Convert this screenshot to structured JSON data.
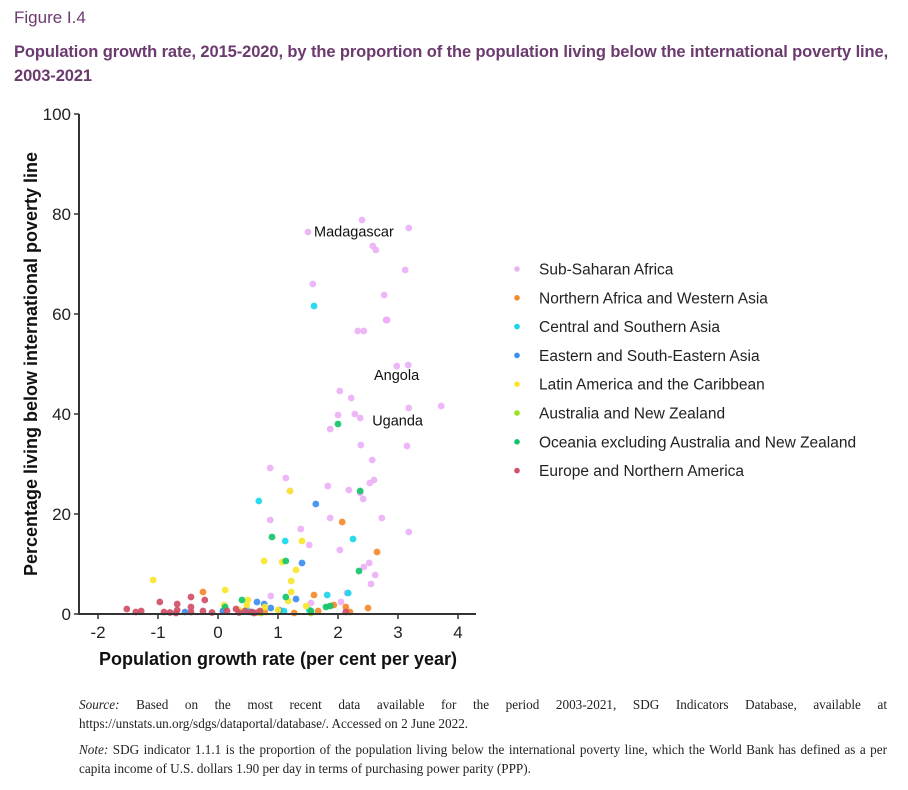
{
  "figure_label": "Figure I.4",
  "figure_title": "Population growth rate, 2015-2020, by the proportion of the population living below the international poverty line, 2003-2021",
  "notes": {
    "source_label": "Source:",
    "source_text": " Based on the most recent data available for the period 2003-2021, SDG Indicators Database, available at https://unstats.un.org/sdgs/dataportal/database/. Accessed on 2 June 2022.",
    "note_label": "Note:",
    "note_text": " SDG indicator 1.1.1 is the proportion of the population living below the international poverty line, which the World Bank has defined as a per capita income of U.S. dollars 1.90 per day in terms of purchasing power parity (PPP)."
  },
  "chart_data": {
    "type": "scatter",
    "title": "Population growth rate, 2015-2020, by the proportion of the population living below the international poverty line, 2003-2021",
    "xlabel": "Population growth rate (per cent per year)",
    "ylabel": "Percentage living below international poverty line",
    "xlim": [
      -2.35,
      4.3
    ],
    "ylim": [
      0,
      100
    ],
    "xticks": [
      -2,
      -1,
      0,
      1,
      2,
      3,
      4
    ],
    "yticks": [
      0,
      20,
      40,
      60,
      80,
      100
    ],
    "grid": false,
    "legend_position": "right",
    "annotations": [
      {
        "text": "Madagascar",
        "x": 1.6,
        "y": 75.5
      },
      {
        "text": "Angola",
        "x": 2.6,
        "y": 46.8
      },
      {
        "text": "Uganda",
        "x": 2.57,
        "y": 37.7
      }
    ],
    "series": [
      {
        "name": "Sub-Saharan Africa",
        "color": "#ebb0f5",
        "points": [
          [
            1.5,
            76.4
          ],
          [
            2.4,
            78.8
          ],
          [
            3.18,
            77.2
          ],
          [
            2.58,
            73.6
          ],
          [
            2.63,
            72.8
          ],
          [
            3.12,
            68.8
          ],
          [
            1.58,
            66.0
          ],
          [
            2.77,
            63.8
          ],
          [
            2.43,
            56.6
          ],
          [
            2.82,
            58.8
          ],
          [
            2.8,
            58.8
          ],
          [
            2.33,
            56.6
          ],
          [
            2.98,
            49.6
          ],
          [
            3.17,
            49.8
          ],
          [
            2.03,
            44.6
          ],
          [
            2.22,
            43.2
          ],
          [
            3.18,
            41.2
          ],
          [
            3.72,
            41.6
          ],
          [
            2.0,
            39.8
          ],
          [
            2.28,
            40.0
          ],
          [
            2.37,
            39.2
          ],
          [
            1.87,
            37.0
          ],
          [
            2.38,
            33.8
          ],
          [
            3.15,
            33.6
          ],
          [
            2.57,
            30.8
          ],
          [
            3.18,
            16.4
          ],
          [
            2.6,
            26.8
          ],
          [
            1.83,
            25.6
          ],
          [
            2.18,
            24.8
          ],
          [
            2.53,
            26.2
          ],
          [
            2.37,
            24.2
          ],
          [
            2.42,
            23.0
          ],
          [
            0.87,
            29.2
          ],
          [
            1.13,
            27.2
          ],
          [
            1.2,
            24.6
          ],
          [
            0.87,
            18.8
          ],
          [
            1.87,
            19.2
          ],
          [
            2.73,
            19.2
          ],
          [
            1.38,
            17.0
          ],
          [
            1.52,
            13.8
          ],
          [
            2.03,
            12.8
          ],
          [
            2.52,
            10.2
          ],
          [
            2.43,
            9.4
          ],
          [
            2.62,
            7.8
          ],
          [
            2.55,
            6.0
          ],
          [
            2.15,
            4.2
          ],
          [
            0.88,
            3.6
          ],
          [
            1.55,
            2.2
          ],
          [
            2.05,
            2.4
          ]
        ]
      },
      {
        "name": "Northern Africa and Western Asia",
        "color": "#f5892a",
        "points": [
          [
            2.07,
            18.4
          ],
          [
            2.65,
            12.4
          ],
          [
            1.6,
            3.8
          ],
          [
            -0.25,
            4.4
          ],
          [
            1.93,
            1.8
          ],
          [
            2.13,
            1.4
          ],
          [
            2.5,
            1.2
          ],
          [
            1.67,
            0.6
          ],
          [
            2.2,
            0.4
          ],
          [
            1.27,
            0.2
          ],
          [
            0.78,
            0.4
          ],
          [
            0.65,
            0.3
          ]
        ]
      },
      {
        "name": "Central and Southern Asia",
        "color": "#1ad6ec",
        "points": [
          [
            1.6,
            61.6
          ],
          [
            0.68,
            22.6
          ],
          [
            1.12,
            14.6
          ],
          [
            2.25,
            15.0
          ],
          [
            1.82,
            3.8
          ],
          [
            2.17,
            4.2
          ],
          [
            1.52,
            0.8
          ],
          [
            0.48,
            0.8
          ],
          [
            1.1,
            0.6
          ]
        ]
      },
      {
        "name": "Eastern and South-Eastern Asia",
        "color": "#3d8eec",
        "points": [
          [
            1.63,
            22.0
          ],
          [
            1.4,
            10.2
          ],
          [
            1.3,
            3.0
          ],
          [
            0.65,
            2.4
          ],
          [
            0.77,
            2.0
          ],
          [
            0.88,
            1.2
          ],
          [
            -0.55,
            0.4
          ],
          [
            0.08,
            0.6
          ],
          [
            1.02,
            0.8
          ],
          [
            0.57,
            0.4
          ]
        ]
      },
      {
        "name": "Latin America and the Caribbean",
        "color": "#f9e62a",
        "points": [
          [
            -1.08,
            6.8
          ],
          [
            0.12,
            4.8
          ],
          [
            1.2,
            24.6
          ],
          [
            0.77,
            10.6
          ],
          [
            1.07,
            10.4
          ],
          [
            1.3,
            8.8
          ],
          [
            1.22,
            6.6
          ],
          [
            1.22,
            4.4
          ],
          [
            1.17,
            2.6
          ],
          [
            0.5,
            2.8
          ],
          [
            0.48,
            1.8
          ],
          [
            0.1,
            1.8
          ],
          [
            0.78,
            1.4
          ],
          [
            1.47,
            1.6
          ],
          [
            0.35,
            0.8
          ],
          [
            1.4,
            14.6
          ],
          [
            1.0,
            0.8
          ]
        ]
      },
      {
        "name": "Australia and New Zealand",
        "color": "#9be21f",
        "points": [
          [
            0.72,
            0.2
          ],
          [
            1.55,
            0.2
          ]
        ]
      },
      {
        "name": "Oceania excluding Australia and New Zealand",
        "color": "#12c46a",
        "points": [
          [
            2.0,
            38.0
          ],
          [
            2.37,
            24.6
          ],
          [
            0.9,
            15.4
          ],
          [
            1.13,
            10.6
          ],
          [
            2.35,
            8.6
          ],
          [
            1.13,
            3.4
          ],
          [
            0.4,
            2.8
          ],
          [
            1.8,
            1.4
          ],
          [
            1.87,
            1.6
          ],
          [
            0.12,
            1.4
          ],
          [
            1.55,
            0.6
          ]
        ]
      },
      {
        "name": "Europe and Northern America",
        "color": "#cf5068",
        "points": [
          [
            -1.52,
            1.0
          ],
          [
            -1.37,
            0.4
          ],
          [
            -1.28,
            0.6
          ],
          [
            -0.97,
            2.4
          ],
          [
            -0.9,
            0.4
          ],
          [
            -0.68,
            2.0
          ],
          [
            -0.68,
            0.8
          ],
          [
            -0.45,
            3.4
          ],
          [
            -0.45,
            1.4
          ],
          [
            -0.22,
            2.8
          ],
          [
            -0.45,
            0.4
          ],
          [
            -0.25,
            0.6
          ],
          [
            0.3,
            1.0
          ],
          [
            0.45,
            0.6
          ],
          [
            0.55,
            0.4
          ],
          [
            0.15,
            0.6
          ],
          [
            0.35,
            0.3
          ],
          [
            -0.7,
            0.2
          ],
          [
            -0.1,
            0.3
          ],
          [
            0.6,
            0.2
          ],
          [
            -0.8,
            0.3
          ],
          [
            2.13,
            0.4
          ],
          [
            0.7,
            0.6
          ]
        ]
      }
    ]
  }
}
